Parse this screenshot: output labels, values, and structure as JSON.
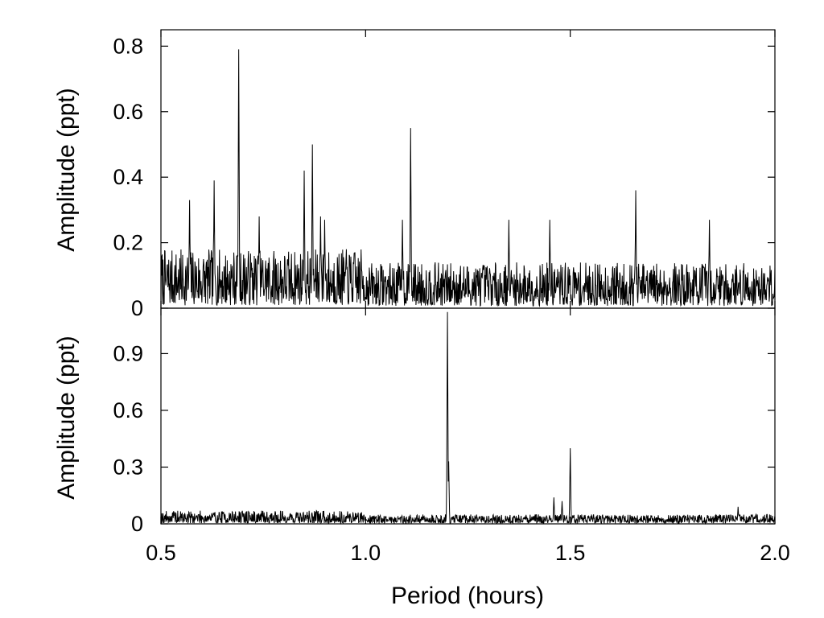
{
  "chart_data": [
    {
      "type": "line",
      "panel": "top",
      "xlabel": "",
      "ylabel": "Amplitude (ppt)",
      "xlim": [
        0.5,
        2.0
      ],
      "ylim": [
        0,
        0.85
      ],
      "yticks": [
        0,
        0.2,
        0.4,
        0.6,
        0.8
      ],
      "ytick_labels": [
        "0",
        "0.2",
        "0.4",
        "0.6",
        "0.8"
      ],
      "grid": false,
      "noise": {
        "0.5-1.0": 0.09,
        "1.0-2.0": 0.07
      },
      "peaks": [
        {
          "x": 0.57,
          "y": 0.33
        },
        {
          "x": 0.63,
          "y": 0.39
        },
        {
          "x": 0.69,
          "y": 0.79
        },
        {
          "x": 0.74,
          "y": 0.28
        },
        {
          "x": 0.85,
          "y": 0.42
        },
        {
          "x": 0.87,
          "y": 0.5
        },
        {
          "x": 0.89,
          "y": 0.28
        },
        {
          "x": 0.9,
          "y": 0.27
        },
        {
          "x": 1.09,
          "y": 0.27
        },
        {
          "x": 1.11,
          "y": 0.55
        },
        {
          "x": 1.35,
          "y": 0.27
        },
        {
          "x": 1.45,
          "y": 0.27
        },
        {
          "x": 1.66,
          "y": 0.36
        },
        {
          "x": 1.84,
          "y": 0.27
        }
      ]
    },
    {
      "type": "line",
      "panel": "bottom",
      "xlabel": "Period (hours)",
      "ylabel": "Amplitude (ppt)",
      "xlim": [
        0.5,
        2.0
      ],
      "ylim": [
        0,
        1.14
      ],
      "xticks": [
        0.5,
        1.0,
        1.5,
        2.0
      ],
      "xtick_labels": [
        "0.5",
        "1.0",
        "1.5",
        "2.0"
      ],
      "yticks": [
        0,
        0.3,
        0.6,
        0.9
      ],
      "ytick_labels": [
        "0",
        "0.3",
        "0.6",
        "0.9"
      ],
      "grid": false,
      "noise": {
        "0.5-1.0": 0.035,
        "1.0-2.0": 0.025
      },
      "peaks": [
        {
          "x": 1.2,
          "y": 1.12
        },
        {
          "x": 1.203,
          "y": 0.33
        },
        {
          "x": 1.46,
          "y": 0.14
        },
        {
          "x": 1.48,
          "y": 0.12
        },
        {
          "x": 1.5,
          "y": 0.4
        },
        {
          "x": 1.91,
          "y": 0.09
        }
      ]
    }
  ]
}
